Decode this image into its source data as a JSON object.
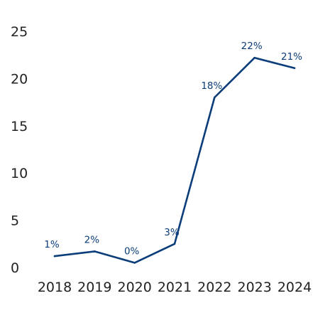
{
  "chart_data": {
    "type": "line",
    "title": "",
    "xlabel": "",
    "ylabel": "",
    "categories": [
      "2018",
      "2019",
      "2020",
      "2021",
      "2022",
      "2023",
      "2024"
    ],
    "series": [
      {
        "values": [
          1.2,
          1.7,
          0.5,
          2.5,
          18.0,
          22.2,
          21.1
        ],
        "data_labels": [
          "1%",
          "2%",
          "0%",
          "3%",
          "18%",
          "22%",
          "21%"
        ],
        "color": "#0b3d7a"
      }
    ],
    "ylim": [
      0,
      25
    ],
    "yticks": [
      "0",
      "5",
      "10",
      "15",
      "20",
      "25"
    ],
    "grid": false,
    "legend": "none"
  }
}
